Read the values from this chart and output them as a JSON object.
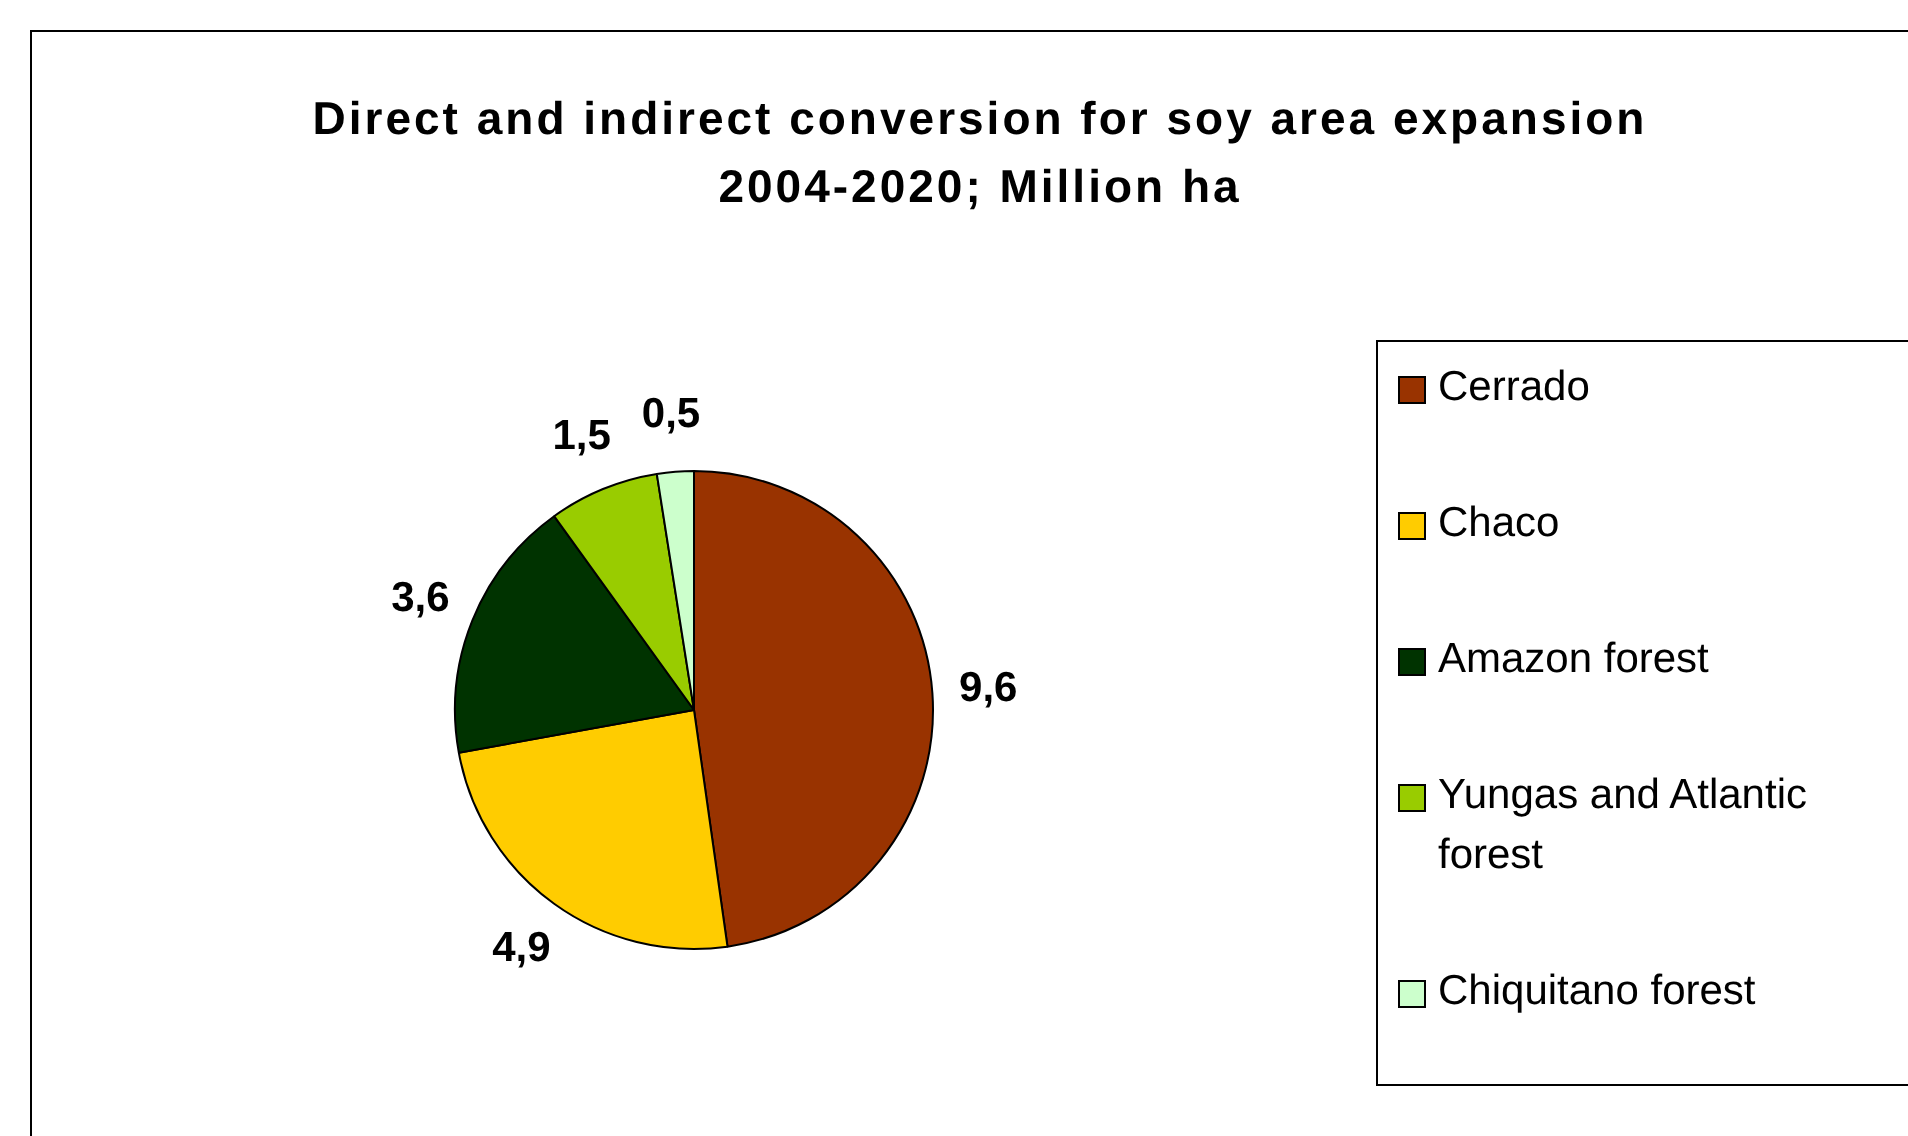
{
  "chart_data": {
    "type": "pie",
    "title": "Direct and indirect conversion for soy area expansion 2004-2020; Million ha",
    "categories": [
      "Cerrado",
      "Chaco",
      "Amazon forest",
      "Yungas and Atlantic forest",
      "Chiquitano forest"
    ],
    "values": [
      9.6,
      4.9,
      3.6,
      1.5,
      0.5
    ],
    "value_labels": [
      "9,6",
      "4,9",
      "3,6",
      "1,5",
      "0,5"
    ],
    "colors": [
      "#993300",
      "#ffcc00",
      "#003300",
      "#99cc00",
      "#ccffcc"
    ],
    "legend": "right"
  }
}
